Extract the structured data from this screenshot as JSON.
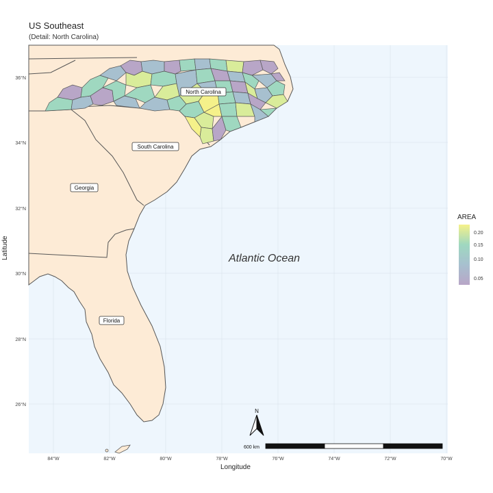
{
  "title": "US Southeast",
  "subtitle": "(Detail: North Carolina)",
  "axes": {
    "xlabel": "Longitude",
    "ylabel": "Latitude",
    "x_ticks": [
      "84°W",
      "82°W",
      "80°W",
      "78°W",
      "76°W",
      "74°W",
      "72°W",
      "70°W"
    ],
    "y_ticks": [
      "36°N",
      "34°N",
      "32°N",
      "30°N",
      "28°N",
      "26°N"
    ]
  },
  "labels": {
    "north_carolina": "North Carolina",
    "south_carolina": "South Carolina",
    "georgia": "Georgia",
    "florida": "Florida",
    "ocean": "Atlantic Ocean"
  },
  "legend": {
    "title": "AREA",
    "ticks": [
      "0.20",
      "0.15",
      "0.10",
      "0.05"
    ]
  },
  "scale_bar": {
    "label": "600 km"
  },
  "north_arrow": {
    "label": "N"
  },
  "colors": {
    "land": "#fdebd6",
    "ocean": "#eef6fd",
    "border": "#555555",
    "low": "#b8a6c7",
    "mid": "#9fd8c0",
    "high": "#f5f18a"
  }
}
